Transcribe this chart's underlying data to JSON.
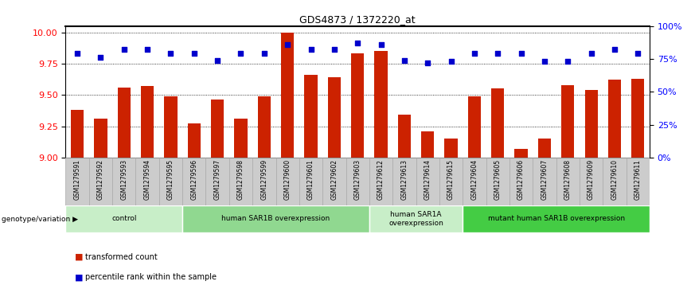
{
  "title": "GDS4873 / 1372220_at",
  "samples": [
    "GSM1279591",
    "GSM1279592",
    "GSM1279593",
    "GSM1279594",
    "GSM1279595",
    "GSM1279596",
    "GSM1279597",
    "GSM1279598",
    "GSM1279599",
    "GSM1279600",
    "GSM1279601",
    "GSM1279602",
    "GSM1279603",
    "GSM1279612",
    "GSM1279613",
    "GSM1279614",
    "GSM1279615",
    "GSM1279604",
    "GSM1279605",
    "GSM1279606",
    "GSM1279607",
    "GSM1279608",
    "GSM1279609",
    "GSM1279610",
    "GSM1279611"
  ],
  "bar_values": [
    9.38,
    9.31,
    9.56,
    9.57,
    9.49,
    9.27,
    9.46,
    9.31,
    9.49,
    10.0,
    9.66,
    9.64,
    9.83,
    9.85,
    9.34,
    9.21,
    9.15,
    9.49,
    9.55,
    9.07,
    9.15,
    9.58,
    9.54,
    9.62,
    9.63
  ],
  "percentile_values": [
    79,
    76,
    82,
    82,
    79,
    79,
    74,
    79,
    79,
    86,
    82,
    82,
    87,
    86,
    74,
    72,
    73,
    79,
    79,
    79,
    73,
    73,
    79,
    82,
    79
  ],
  "groups": [
    {
      "label": "control",
      "start": 0,
      "end": 5,
      "color": "#c8eec8"
    },
    {
      "label": "human SAR1B overexpression",
      "start": 5,
      "end": 13,
      "color": "#90d890"
    },
    {
      "label": "human SAR1A\noverexpression",
      "start": 13,
      "end": 17,
      "color": "#c8eec8"
    },
    {
      "label": "mutant human SAR1B overexpression",
      "start": 17,
      "end": 25,
      "color": "#44cc44"
    }
  ],
  "ylim_left": [
    9.0,
    10.05
  ],
  "ylim_right": [
    0,
    100
  ],
  "yticks_left": [
    9.0,
    9.25,
    9.5,
    9.75,
    10.0
  ],
  "yticks_right": [
    0,
    25,
    50,
    75,
    100
  ],
  "bar_color": "#cc2200",
  "dot_color": "#0000cc",
  "col_bg": "#cccccc",
  "genotype_label": "genotype/variation"
}
